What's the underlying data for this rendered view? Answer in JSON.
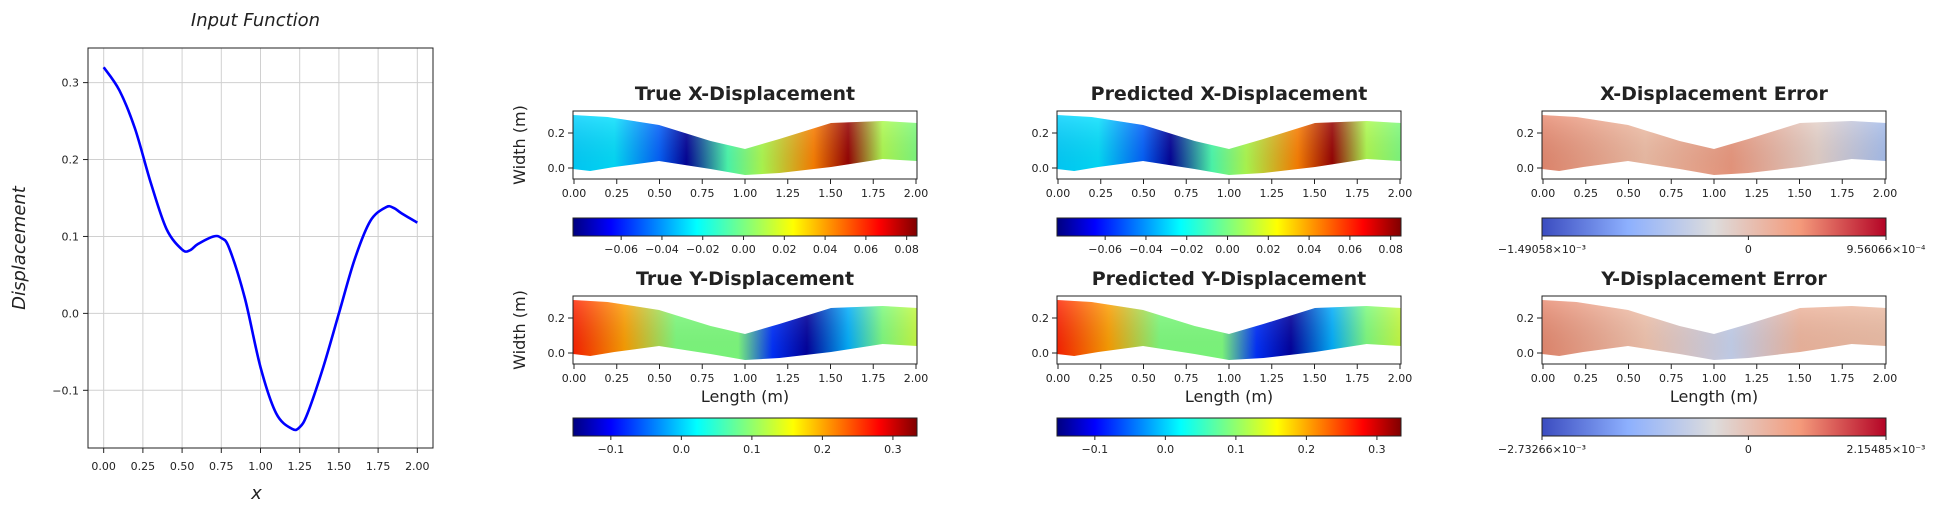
{
  "colors": {
    "line": "#0000ff",
    "grid": "#d0d0d0",
    "axis": "#222222"
  },
  "chart_data": [
    {
      "type": "line",
      "title": "Input Function",
      "xlabel": "x",
      "ylabel": "Displacement",
      "xlim": [
        -0.1,
        2.1
      ],
      "ylim": [
        -0.175,
        0.345
      ],
      "xticks": [
        "0.00",
        "0.25",
        "0.50",
        "0.75",
        "1.00",
        "1.25",
        "1.50",
        "1.75",
        "2.00"
      ],
      "yticks": [
        "0.3",
        "0.2",
        "0.1",
        "0.0",
        "−0.1"
      ],
      "grid": true,
      "x": [
        0.0,
        0.1,
        0.2,
        0.3,
        0.4,
        0.5,
        0.55,
        0.6,
        0.7,
        0.75,
        0.8,
        0.9,
        1.0,
        1.1,
        1.2,
        1.25,
        1.3,
        1.4,
        1.5,
        1.6,
        1.7,
        1.8,
        1.85,
        1.9,
        2.0
      ],
      "y": [
        0.32,
        0.29,
        0.24,
        0.17,
        0.11,
        0.083,
        0.082,
        0.09,
        0.1,
        0.098,
        0.085,
        0.02,
        -0.07,
        -0.13,
        -0.15,
        -0.148,
        -0.13,
        -0.07,
        0.0,
        0.07,
        0.12,
        0.138,
        0.137,
        0.13,
        0.118
      ]
    },
    {
      "type": "heatmap",
      "title": "True X-Displacement",
      "ylabel": "Width (m)",
      "xticks": [
        "0.00",
        "0.25",
        "0.50",
        "0.75",
        "1.00",
        "1.25",
        "1.50",
        "1.75",
        "2.00"
      ],
      "yticks": [
        "0.2",
        "0.0"
      ],
      "colormap": "jet",
      "colorbar_ticks": [
        "−0.06",
        "−0.04",
        "−0.02",
        "0.00",
        "0.02",
        "0.04",
        "0.06",
        "0.08"
      ]
    },
    {
      "type": "heatmap",
      "title": "Predicted X-Displacement",
      "xticks": [
        "0.00",
        "0.25",
        "0.50",
        "0.75",
        "1.00",
        "1.25",
        "1.50",
        "1.75",
        "2.00"
      ],
      "yticks": [
        "0.2",
        "0.0"
      ],
      "colormap": "jet",
      "colorbar_ticks": [
        "−0.06",
        "−0.04",
        "−0.02",
        "0.00",
        "0.02",
        "0.04",
        "0.06",
        "0.08"
      ]
    },
    {
      "type": "heatmap",
      "title": "X-Displacement Error",
      "xticks": [
        "0.00",
        "0.25",
        "0.50",
        "0.75",
        "1.00",
        "1.25",
        "1.50",
        "1.75",
        "2.00"
      ],
      "yticks": [
        "0.2",
        "0.0"
      ],
      "colormap": "coolwarm",
      "colorbar_ticks": [
        "−1.49058×10⁻³",
        "0",
        "9.56066×10⁻⁴"
      ]
    },
    {
      "type": "heatmap",
      "title": "True Y-Displacement",
      "xlabel": "Length (m)",
      "ylabel": "Width (m)",
      "xticks": [
        "0.00",
        "0.25",
        "0.50",
        "0.75",
        "1.00",
        "1.25",
        "1.50",
        "1.75",
        "2.00"
      ],
      "yticks": [
        "0.2",
        "0.0"
      ],
      "colormap": "jet",
      "colorbar_ticks": [
        "−0.1",
        "0.0",
        "0.1",
        "0.2",
        "0.3"
      ]
    },
    {
      "type": "heatmap",
      "title": "Predicted Y-Displacement",
      "xlabel": "Length (m)",
      "xticks": [
        "0.00",
        "0.25",
        "0.50",
        "0.75",
        "1.00",
        "1.25",
        "1.50",
        "1.75",
        "2.00"
      ],
      "yticks": [
        "0.2",
        "0.0"
      ],
      "colormap": "jet",
      "colorbar_ticks": [
        "−0.1",
        "0.0",
        "0.1",
        "0.2",
        "0.3"
      ]
    },
    {
      "type": "heatmap",
      "title": "Y-Displacement Error",
      "xlabel": "Length (m)",
      "xticks": [
        "0.00",
        "0.25",
        "0.50",
        "0.75",
        "1.00",
        "1.25",
        "1.50",
        "1.75",
        "2.00"
      ],
      "yticks": [
        "0.2",
        "0.0"
      ],
      "colormap": "coolwarm",
      "colorbar_ticks": [
        "−2.73266×10⁻³",
        "0",
        "2.15485×10⁻³"
      ]
    }
  ]
}
